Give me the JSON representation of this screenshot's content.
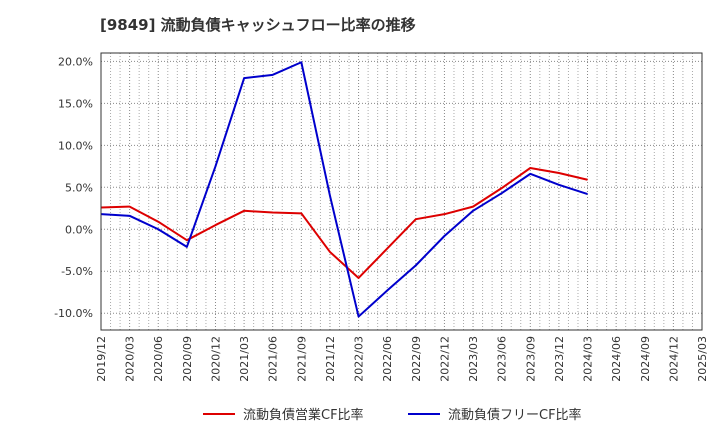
{
  "chart_data": {
    "type": "line",
    "title": "[9849]  流動負債キャッシュフロー比率の推移",
    "x": [
      "2019/12",
      "2020/03",
      "2020/06",
      "2020/09",
      "2020/12",
      "2021/03",
      "2021/06",
      "2021/09",
      "2021/12",
      "2022/03",
      "2022/06",
      "2022/09",
      "2022/12",
      "2023/03",
      "2023/06",
      "2023/09",
      "2023/12",
      "2024/03",
      "2024/06",
      "2024/09",
      "2024/12",
      "2025/03"
    ],
    "ylim": [
      -12,
      21
    ],
    "yticks": [
      -10,
      -5,
      0,
      5,
      10,
      15,
      20
    ],
    "ytick_labels": [
      "-10.0%",
      "-5.0%",
      "0.0%",
      "5.0%",
      "10.0%",
      "15.0%",
      "20.0%"
    ],
    "grid": true,
    "legend_position": "bottom",
    "series": [
      {
        "name": "流動負債営業CF比率",
        "color": "#dd0000",
        "values": [
          2.6,
          2.7,
          0.9,
          -1.3,
          0.5,
          2.2,
          2.0,
          1.9,
          -2.7,
          -5.8,
          -2.3,
          1.2,
          1.8,
          2.7,
          4.9,
          7.3,
          6.7,
          5.9,
          null,
          null,
          null,
          null
        ]
      },
      {
        "name": "流動負債フリーCF比率",
        "color": "#0000cc",
        "values": [
          1.8,
          1.6,
          0.0,
          -2.1,
          7.5,
          18.0,
          18.4,
          19.9,
          4.0,
          -10.4,
          -7.3,
          -4.3,
          -0.8,
          2.2,
          4.3,
          6.6,
          5.3,
          4.2,
          null,
          null,
          null,
          null
        ]
      }
    ]
  }
}
